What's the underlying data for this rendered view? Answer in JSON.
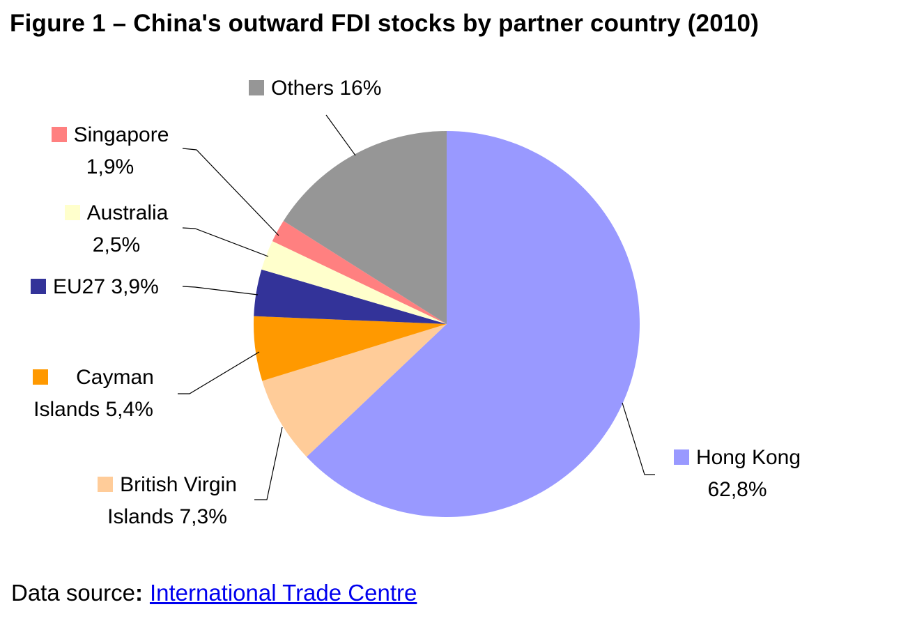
{
  "chart_data": {
    "type": "pie",
    "title": "Figure 1 – China's outward FDI stocks by partner country (2010)",
    "start_angle": "12 o'clock",
    "direction": "clockwise",
    "slices": [
      {
        "label": "Hong Kong",
        "value": 62.8,
        "value_label": "62,8%",
        "color": "#9999FF"
      },
      {
        "label": "British Virgin Islands",
        "value": 7.3,
        "value_label": "7,3%",
        "color": "#FFCC99"
      },
      {
        "label": "Cayman Islands",
        "value": 5.4,
        "value_label": "5,4%",
        "color": "#FF9900"
      },
      {
        "label": "EU27",
        "value": 3.9,
        "value_label": "3,9%",
        "color": "#333399"
      },
      {
        "label": "Australia",
        "value": 2.5,
        "value_label": "2,5%",
        "color": "#FFFFCC"
      },
      {
        "label": "Singapore",
        "value": 1.9,
        "value_label": "1,9%",
        "color": "#FF8080"
      },
      {
        "label": "Others",
        "value": 16,
        "value_label": "16%",
        "color": "#969696"
      }
    ]
  },
  "labels": {
    "hk_1": "Hong Kong",
    "hk_2": "62,8%",
    "bvi_1": "British Virgin",
    "bvi_2": "Islands 7,3%",
    "cay_1": "Cayman",
    "cay_2": "Islands 5,4%",
    "eu": "EU27 3,9%",
    "au_1": "Australia",
    "au_2": "2,5%",
    "sg_1": "Singapore",
    "sg_2": "1,9%",
    "oth": "Others 16%"
  },
  "source": {
    "prefix": "Data source",
    "colon": ":",
    "link_text": "International Trade Centre"
  }
}
